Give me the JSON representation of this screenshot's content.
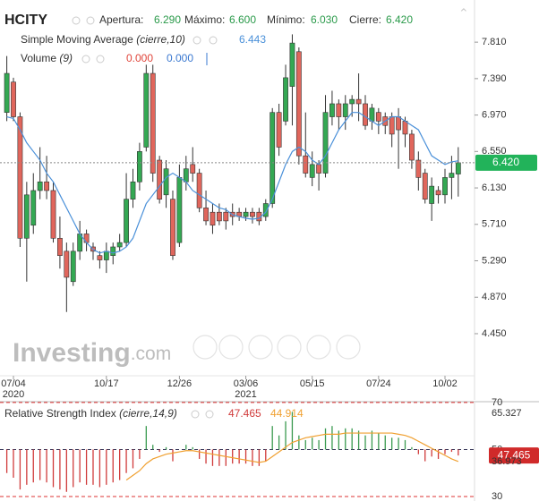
{
  "header": {
    "symbol": "HCITY",
    "fields": [
      {
        "label": "Apertura:",
        "value": "6.290"
      },
      {
        "label": "Máximo:",
        "value": "6.600"
      },
      {
        "label": "Mínimo:",
        "value": "6.030"
      },
      {
        "label": "Cierre:"
      }
    ]
  },
  "volume": {
    "name": "Volume",
    "params": "(9)",
    "value_1": "0.000",
    "value_2": "0.000"
  },
  "watermark": {
    "main": "Investing",
    "suffix": ".com"
  },
  "chart_data": [
    {
      "type": "candlestick",
      "up_color": "#34a853",
      "down_color": "#e0665c",
      "ylim": [
        3.965,
        8.296
      ],
      "yticks": [
        {
          "value": 7.81,
          "label": "7.810"
        },
        {
          "value": 7.39,
          "label": "7.390"
        },
        {
          "value": 6.97,
          "label": "6.970"
        },
        {
          "value": 6.55,
          "label": "6.550"
        },
        {
          "value": 6.13,
          "label": "6.130"
        },
        {
          "value": 5.71,
          "label": "5.710"
        },
        {
          "value": 5.29,
          "label": "5.290"
        },
        {
          "value": 4.87,
          "label": "4.870"
        },
        {
          "value": 4.45,
          "label": "4.450"
        }
      ],
      "categories": [
        null,
        "07/04",
        null,
        null,
        null,
        null,
        null,
        null,
        null,
        null,
        null,
        null,
        null,
        null,
        null,
        "10/17",
        null,
        null,
        null,
        null,
        null,
        null,
        null,
        null,
        null,
        null,
        "12/26",
        null,
        null,
        null,
        null,
        null,
        null,
        null,
        null,
        null,
        "03/06",
        null,
        null,
        null,
        null,
        null,
        null,
        null,
        null,
        null,
        "05/15",
        null,
        null,
        null,
        null,
        null,
        null,
        null,
        null,
        null,
        "07/24",
        null,
        null,
        null,
        null,
        null,
        null,
        null,
        null,
        null,
        "10/02",
        null,
        null
      ],
      "category_years": [
        null,
        "2020",
        null,
        null,
        null,
        null,
        null,
        null,
        null,
        null,
        null,
        null,
        null,
        null,
        null,
        null,
        null,
        null,
        null,
        null,
        null,
        null,
        null,
        null,
        null,
        null,
        null,
        null,
        null,
        null,
        null,
        null,
        null,
        null,
        null,
        null,
        "2021",
        null,
        null,
        null,
        null,
        null,
        null,
        null,
        null,
        null,
        null,
        null,
        null,
        null,
        null,
        null,
        null,
        null,
        null,
        null,
        null,
        null,
        null,
        null,
        null,
        null,
        null,
        null,
        null,
        null,
        null,
        null,
        null
      ],
      "open": [
        7.0,
        7.35,
        6.95,
        5.55,
        5.7,
        6.1,
        6.2,
        6.1,
        5.55,
        5.4,
        5.05,
        5.4,
        5.6,
        5.45,
        5.35,
        5.3,
        5.35,
        5.45,
        5.5,
        6.0,
        6.2,
        6.6,
        7.45,
        6.45,
        6.05,
        6.0,
        5.5,
        6.2,
        6.4,
        6.3,
        5.9,
        5.85,
        5.85,
        5.85,
        5.85,
        5.85,
        5.8,
        5.85,
        5.85,
        5.8,
        5.95,
        7.0,
        6.9,
        7.3,
        7.7,
        6.5,
        6.25,
        6.4,
        6.3,
        6.95,
        7.1,
        6.95,
        7.1,
        7.15,
        7.1,
        6.9,
        7.0,
        6.95,
        6.95,
        6.95,
        6.9,
        6.75,
        6.45,
        6.3,
        5.95,
        6.1,
        6.05,
        6.25,
        6.29
      ],
      "high": [
        7.65,
        7.4,
        7.0,
        6.2,
        6.3,
        6.6,
        6.5,
        6.2,
        5.8,
        5.5,
        5.5,
        5.75,
        5.65,
        5.5,
        5.4,
        5.5,
        5.5,
        5.6,
        6.3,
        6.35,
        6.65,
        7.55,
        7.55,
        6.5,
        6.45,
        6.1,
        6.4,
        6.5,
        6.6,
        6.35,
        6.1,
        5.95,
        5.95,
        5.9,
        5.95,
        5.9,
        5.9,
        5.9,
        5.9,
        6.0,
        7.05,
        7.1,
        7.55,
        7.9,
        7.75,
        7.0,
        6.55,
        6.45,
        7.2,
        7.25,
        7.15,
        7.2,
        7.2,
        7.45,
        7.2,
        7.1,
        7.05,
        7.0,
        7.0,
        7.05,
        6.95,
        6.8,
        6.55,
        6.35,
        6.25,
        6.15,
        6.35,
        6.5,
        6.6
      ],
      "low": [
        6.9,
        6.9,
        5.45,
        5.05,
        5.6,
        6.0,
        6.0,
        5.5,
        5.2,
        4.7,
        5.0,
        5.3,
        5.4,
        5.3,
        5.2,
        5.15,
        5.25,
        5.4,
        5.45,
        5.9,
        6.1,
        6.55,
        6.2,
        5.95,
        5.9,
        5.3,
        5.45,
        6.1,
        6.2,
        5.85,
        5.7,
        5.6,
        5.7,
        5.65,
        5.7,
        5.75,
        5.75,
        5.72,
        5.7,
        5.75,
        5.9,
        6.5,
        6.85,
        6.85,
        6.4,
        6.25,
        6.15,
        6.1,
        6.25,
        6.85,
        6.8,
        6.8,
        6.95,
        6.9,
        6.8,
        6.8,
        6.75,
        6.75,
        6.6,
        6.35,
        6.6,
        6.35,
        6.1,
        5.95,
        5.75,
        5.95,
        5.95,
        6.0,
        6.03
      ],
      "close": [
        7.45,
        6.95,
        5.55,
        6.05,
        6.1,
        6.2,
        6.1,
        5.55,
        5.35,
        5.1,
        5.4,
        5.6,
        5.5,
        5.4,
        5.3,
        5.4,
        5.45,
        5.5,
        6.0,
        6.2,
        6.55,
        7.45,
        6.3,
        6.0,
        6.35,
        5.35,
        6.25,
        6.35,
        6.3,
        5.9,
        5.75,
        5.7,
        5.75,
        5.75,
        5.8,
        5.8,
        5.85,
        5.8,
        5.75,
        5.95,
        7.0,
        6.6,
        7.4,
        7.8,
        6.5,
        6.3,
        6.4,
        6.3,
        7.0,
        7.1,
        6.95,
        7.1,
        7.15,
        7.1,
        6.85,
        7.05,
        6.9,
        6.85,
        6.75,
        6.8,
        6.75,
        6.45,
        6.25,
        6.0,
        6.15,
        6.05,
        6.25,
        6.3,
        6.42
      ],
      "last_value_label": "6.420",
      "sma": {
        "name": "Simple Moving Average",
        "params": "(cierre,10)",
        "color": "#4a90d9",
        "value_label": "6.443",
        "values": [
          6.95,
          6.93,
          6.8,
          6.65,
          6.55,
          6.45,
          6.3,
          6.2,
          6.05,
          5.9,
          5.75,
          5.6,
          5.5,
          5.42,
          5.38,
          5.4,
          5.38,
          5.4,
          5.45,
          5.55,
          5.75,
          5.95,
          6.05,
          6.15,
          6.25,
          6.3,
          6.25,
          6.2,
          6.1,
          6.05,
          6.0,
          5.95,
          5.9,
          5.88,
          5.82,
          5.8,
          5.78,
          5.77,
          5.78,
          5.85,
          6.0,
          6.2,
          6.4,
          6.55,
          6.6,
          6.55,
          6.45,
          6.4,
          6.5,
          6.65,
          6.8,
          6.9,
          7.0,
          7.0,
          6.95,
          6.9,
          6.85,
          6.9,
          6.95,
          6.95,
          6.9,
          6.85,
          6.8,
          6.65,
          6.5,
          6.45,
          6.4,
          6.43,
          6.443
        ]
      }
    },
    {
      "type": "rsi",
      "name": "Relative Strength Index",
      "params": "(cierre,14,9)",
      "up_color": "#3a9a50",
      "down_color": "#d03a3a",
      "baseline": 50,
      "ylim": [
        28.1,
        71.1
      ],
      "yticks": [
        70,
        50,
        30
      ],
      "tick_line_colors": [
        "#d33",
        "#335",
        "#d33"
      ],
      "side_labels": [
        "65.327",
        "36.973"
      ],
      "value_label": "47.465",
      "values": [
        40,
        38,
        33,
        35,
        36,
        37,
        36,
        34,
        33,
        32,
        34,
        36,
        35,
        35,
        34,
        35,
        36,
        37,
        40,
        42,
        46,
        60,
        52,
        49,
        51,
        45,
        50,
        52,
        51,
        46,
        44,
        43,
        43,
        43,
        44,
        44,
        44,
        43,
        43,
        45,
        60,
        56,
        62,
        66,
        56,
        54,
        55,
        54,
        59,
        60,
        58,
        59,
        59,
        58,
        56,
        58,
        57,
        56,
        55,
        55,
        54,
        51,
        48,
        45,
        47,
        46,
        48,
        49,
        47.465
      ],
      "signal": {
        "color": "#f0a030",
        "value_label": "44.914",
        "values": [
          null,
          null,
          null,
          null,
          null,
          null,
          null,
          null,
          null,
          null,
          null,
          null,
          null,
          null,
          null,
          null,
          null,
          null,
          37,
          39,
          41,
          44,
          46,
          47,
          48,
          48.5,
          49,
          49.5,
          49.5,
          49,
          48.5,
          48,
          47.5,
          47,
          46.5,
          46,
          45.5,
          45,
          44.5,
          45,
          47,
          49,
          51,
          53,
          54,
          55,
          55.5,
          56,
          56.5,
          56.5,
          56.5,
          57,
          57,
          57,
          57,
          57,
          57,
          57,
          57,
          56.5,
          56,
          55,
          53.5,
          52,
          50.5,
          49,
          47.5,
          46,
          44.914
        ]
      }
    }
  ]
}
